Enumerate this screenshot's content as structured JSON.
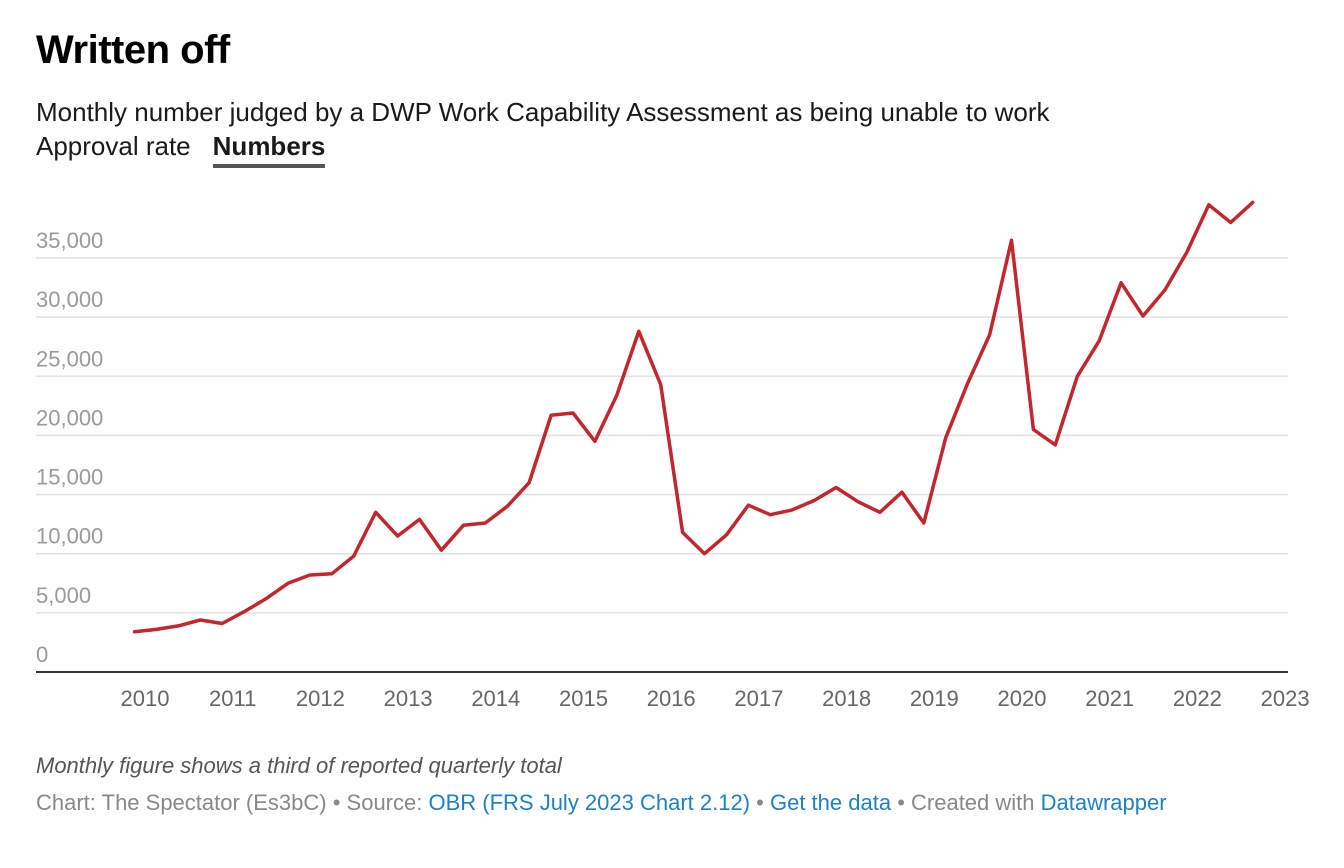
{
  "header": {
    "title": "Written off",
    "subtitle": "Monthly number judged by a DWP Work Capability Assessment as being unable to work",
    "tabs": [
      {
        "label": "Approval rate",
        "active": false
      },
      {
        "label": "Numbers",
        "active": true
      }
    ]
  },
  "chart_data": {
    "type": "line",
    "title": "Written off",
    "subtitle": "Monthly number judged by a DWP Work Capability Assessment as being unable to work",
    "xlabel": "",
    "ylabel": "",
    "xlim": [
      2009.0,
      2023.0
    ],
    "ylim": [
      0,
      40000
    ],
    "yticks": [
      0,
      5000,
      10000,
      15000,
      20000,
      25000,
      30000,
      35000
    ],
    "ytick_labels": [
      "0",
      "5,000",
      "10,000",
      "15,000",
      "20,000",
      "25,000",
      "30,000",
      "35,000"
    ],
    "xticks": [
      2010,
      2011,
      2012,
      2013,
      2014,
      2015,
      2016,
      2017,
      2018,
      2019,
      2020,
      2021,
      2022,
      2023
    ],
    "grid": true,
    "line_color": "#c1272d",
    "series": [
      {
        "name": "",
        "points": [
          [
            2009.88,
            3400
          ],
          [
            2010.13,
            3600
          ],
          [
            2010.38,
            3900
          ],
          [
            2010.63,
            4400
          ],
          [
            2010.88,
            4100
          ],
          [
            2011.13,
            5100
          ],
          [
            2011.38,
            6200
          ],
          [
            2011.63,
            7500
          ],
          [
            2011.88,
            8200
          ],
          [
            2012.13,
            8300
          ],
          [
            2012.38,
            9800
          ],
          [
            2012.63,
            13500
          ],
          [
            2012.88,
            11500
          ],
          [
            2013.13,
            12900
          ],
          [
            2013.38,
            10300
          ],
          [
            2013.63,
            12400
          ],
          [
            2013.88,
            12600
          ],
          [
            2014.13,
            14000
          ],
          [
            2014.38,
            16000
          ],
          [
            2014.63,
            21700
          ],
          [
            2014.88,
            21900
          ],
          [
            2015.13,
            19500
          ],
          [
            2015.38,
            23400
          ],
          [
            2015.63,
            28800
          ],
          [
            2015.88,
            24300
          ],
          [
            2016.13,
            11800
          ],
          [
            2016.38,
            10000
          ],
          [
            2016.63,
            11600
          ],
          [
            2016.88,
            14100
          ],
          [
            2017.13,
            13300
          ],
          [
            2017.38,
            13700
          ],
          [
            2017.63,
            14500
          ],
          [
            2017.88,
            15600
          ],
          [
            2018.13,
            14400
          ],
          [
            2018.38,
            13500
          ],
          [
            2018.63,
            15200
          ],
          [
            2018.88,
            12600
          ],
          [
            2019.13,
            19800
          ],
          [
            2019.38,
            24400
          ],
          [
            2019.63,
            28500
          ],
          [
            2019.88,
            36500
          ],
          [
            2020.13,
            20500
          ],
          [
            2020.38,
            19200
          ],
          [
            2020.63,
            25000
          ],
          [
            2020.88,
            28000
          ],
          [
            2021.13,
            32900
          ],
          [
            2021.38,
            30100
          ],
          [
            2021.63,
            32300
          ],
          [
            2021.88,
            35500
          ],
          [
            2022.13,
            39500
          ],
          [
            2022.38,
            38000
          ],
          [
            2022.63,
            39700
          ]
        ]
      }
    ]
  },
  "notes": {
    "text": "Monthly figure shows a third of reported quarterly total"
  },
  "footer": {
    "prefix": "Chart: The Spectator (Es3bC) • Source: ",
    "source_link": "OBR (FRS July 2023 Chart 2.12)",
    "sep1": " • ",
    "data_link": "Get the data",
    "sep2": " • Created with ",
    "tool_link": "Datawrapper"
  }
}
